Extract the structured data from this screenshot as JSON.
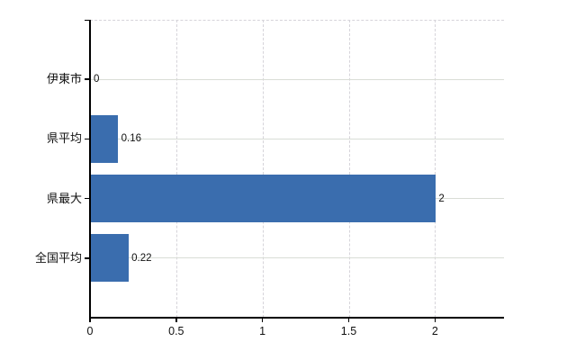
{
  "chart_data": {
    "type": "bar",
    "orientation": "horizontal",
    "title": "",
    "categories": [
      "伊東市",
      "県平均",
      "県最大",
      "全国平均"
    ],
    "values": [
      0,
      0.16,
      2,
      0.22
    ],
    "value_labels": [
      "0",
      "0.16",
      "2",
      "0.22"
    ],
    "x_ticks": [
      0,
      0.5,
      1,
      1.5,
      2
    ],
    "x_tick_labels": [
      "0",
      "0.5",
      "1",
      "1.5",
      "2"
    ],
    "xlim": [
      0,
      2.4
    ],
    "grid": true,
    "legend": false,
    "colors": {
      "bar": "#3a6dae",
      "axis": "#000000",
      "hgrid": "#d9ddd6",
      "vgrid": "#d6d4da",
      "text": "#111111",
      "background": "#ffffff"
    }
  }
}
